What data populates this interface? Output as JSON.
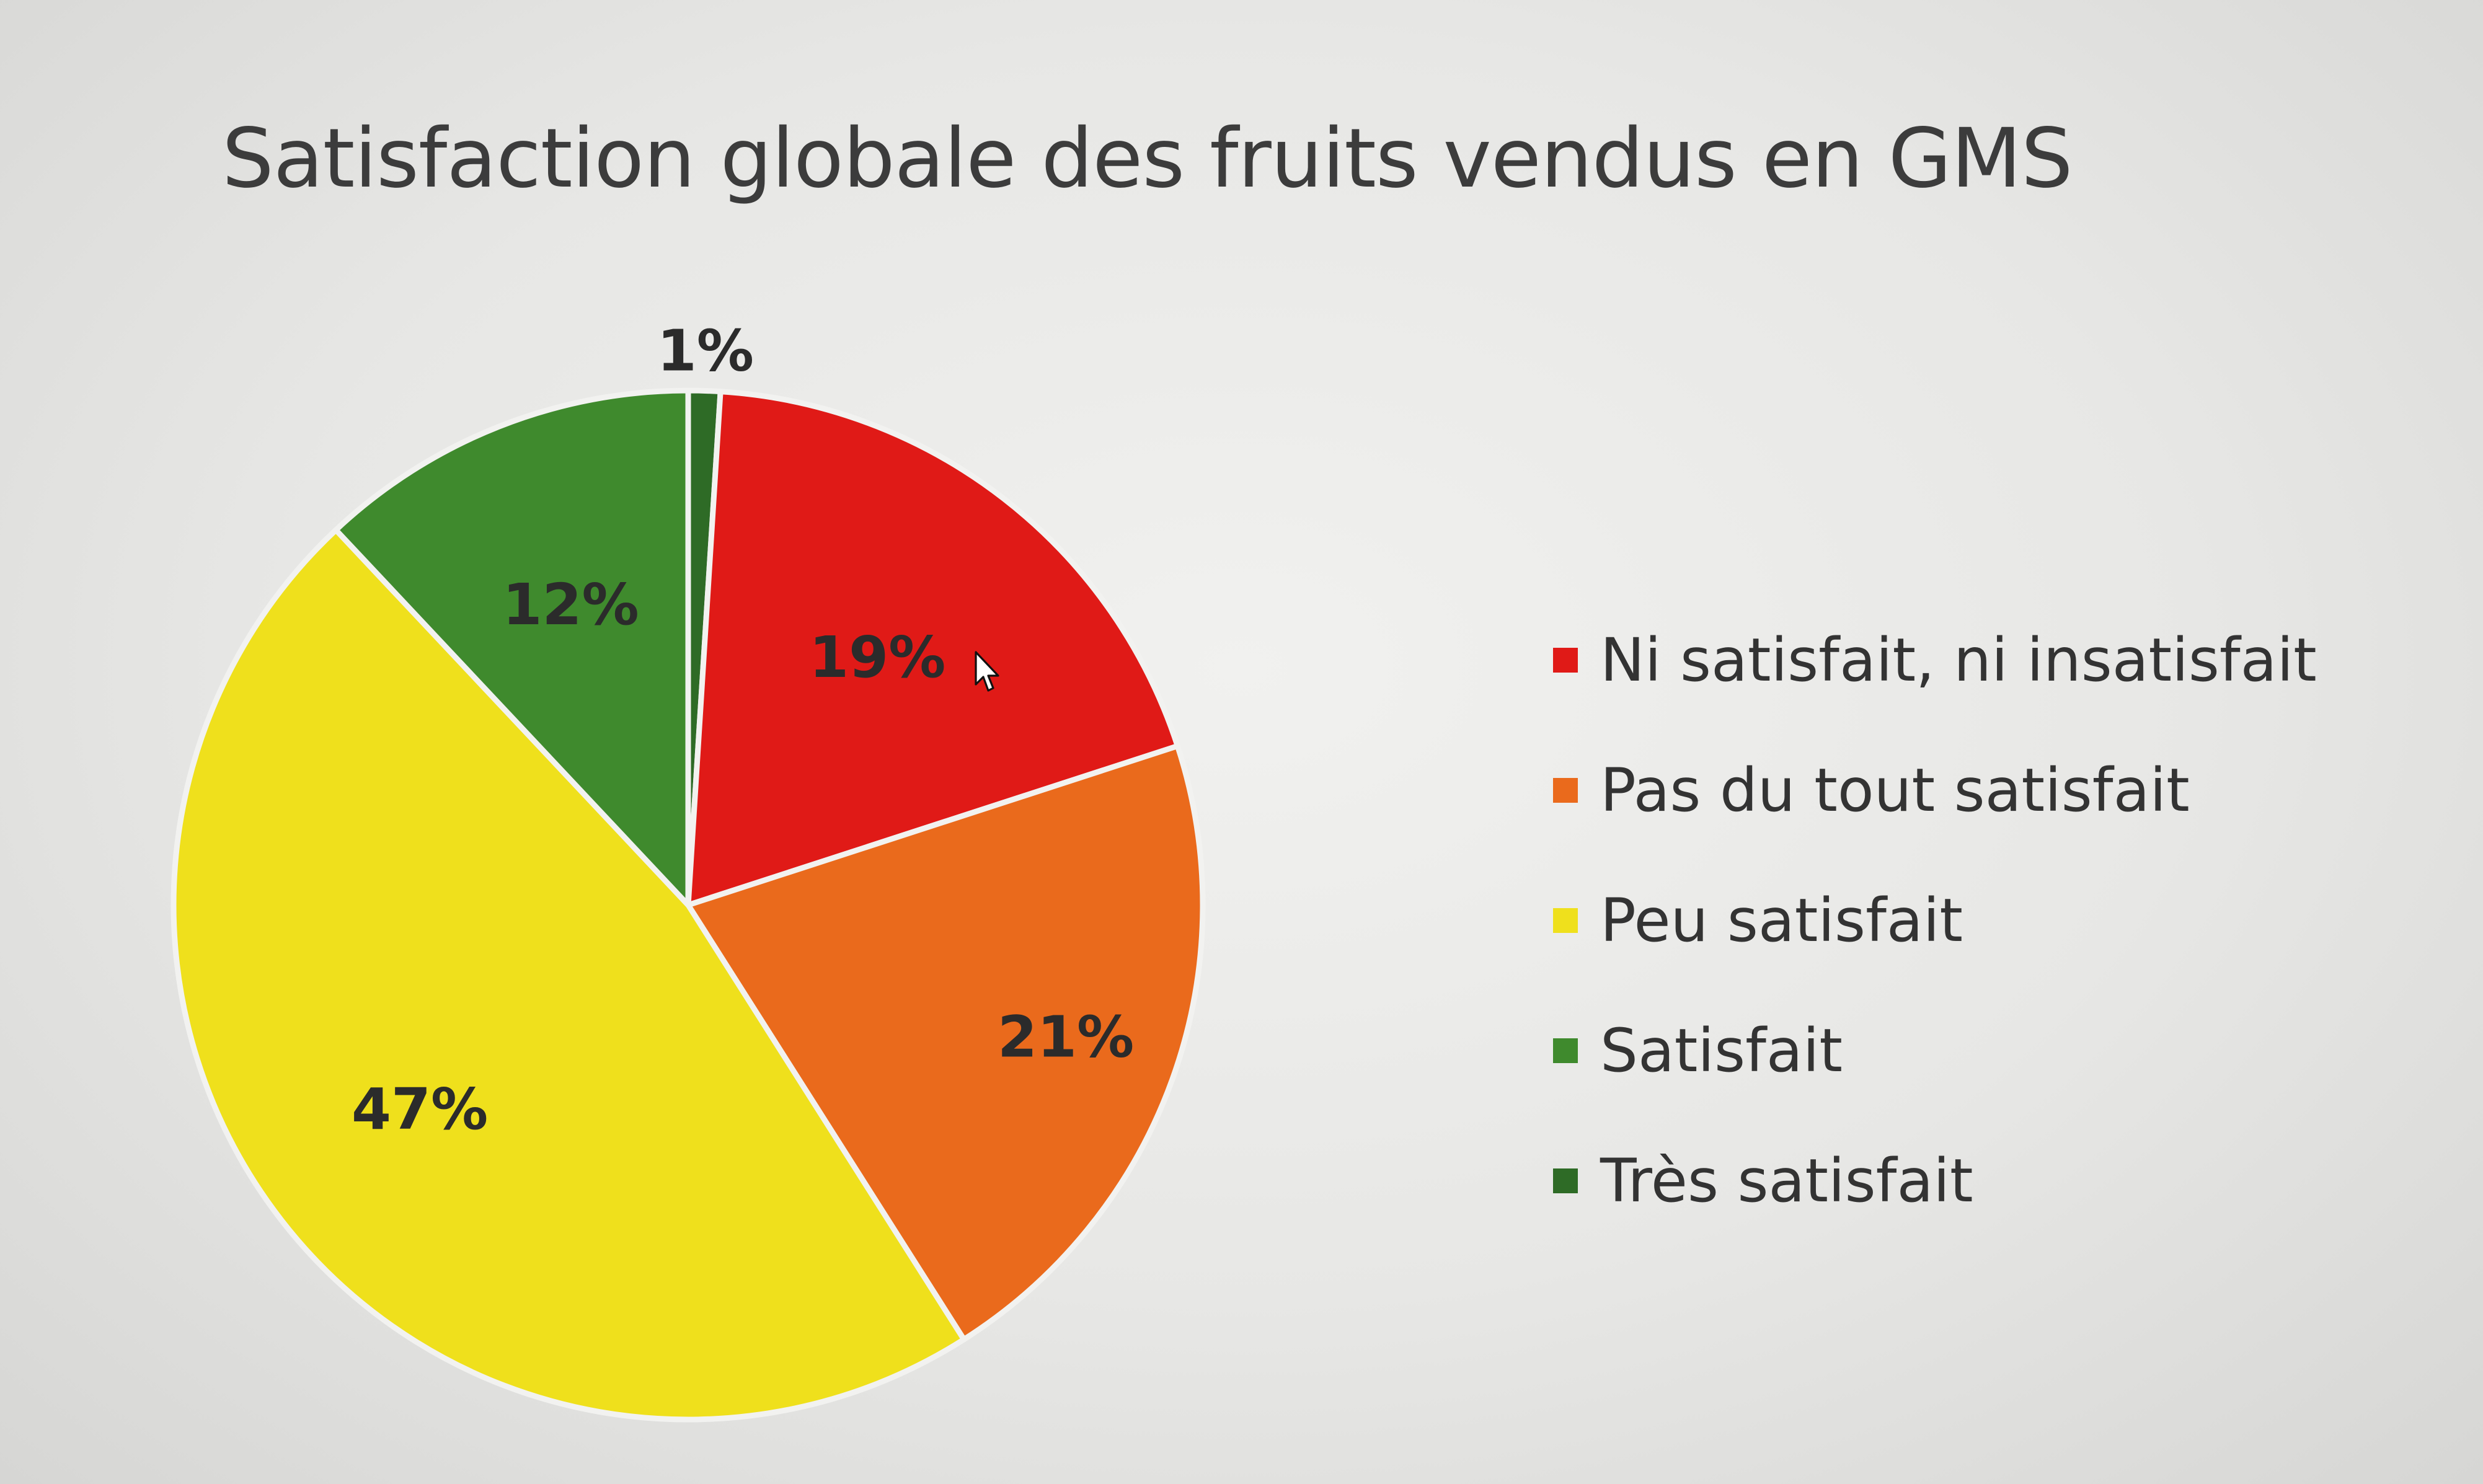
{
  "chart_data": {
    "type": "pie",
    "title": "Satisfaction globale des fruits vendus en GMS",
    "start": "top (12 o'clock), clockwise",
    "slices": [
      {
        "name": "Très satisfait",
        "value": 1,
        "label": "1%",
        "color": "#2e6b26"
      },
      {
        "name": "Ni satisfait, ni insatisfait",
        "value": 19,
        "label": "19%",
        "color": "#e01a17"
      },
      {
        "name": "Pas du tout satisfait",
        "value": 21,
        "label": "21%",
        "color": "#ea6a1c"
      },
      {
        "name": "Peu satisfait",
        "value": 47,
        "label": "47%",
        "color": "#efe01c"
      },
      {
        "name": "Satisfait",
        "value": 12,
        "label": "12%",
        "color": "#3f8a2d"
      }
    ],
    "legend": {
      "position": "right",
      "items": [
        {
          "label": "Ni satisfait, ni insatisfait",
          "color": "#e01a17"
        },
        {
          "label": "Pas du tout satisfait",
          "color": "#ea6a1c"
        },
        {
          "label": "Peu satisfait",
          "color": "#efe01c"
        },
        {
          "label": "Satisfait",
          "color": "#3f8a2d"
        },
        {
          "label": "Très satisfait",
          "color": "#2e6b26"
        }
      ]
    }
  },
  "icons": {
    "cursor": "mouse-pointer-icon"
  }
}
